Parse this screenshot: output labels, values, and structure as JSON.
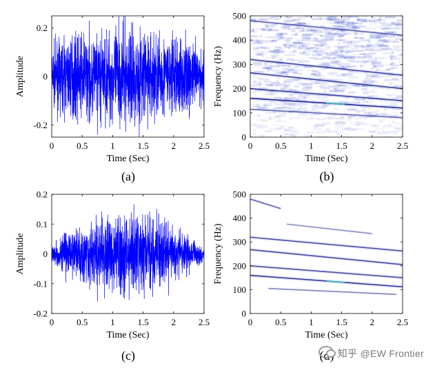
{
  "chart_data": [
    {
      "type": "line",
      "panel": "a",
      "caption": "(a)",
      "xlabel": "Time (Sec)",
      "ylabel": "Amplitude",
      "xlim": [
        0,
        2.5
      ],
      "ylim": [
        -0.25,
        0.25
      ],
      "xticks": [
        "0",
        "0.5",
        "1",
        "1.5",
        "2",
        "2.5"
      ],
      "yticks": [
        "-0.2",
        "0",
        "0.2"
      ],
      "series": [
        {
          "color": "#0000ff",
          "envelope": {
            "t": [
              0,
              0.25,
              0.5,
              0.75,
              1.0,
              1.25,
              1.5,
              1.75,
              2.0,
              2.25,
              2.5
            ],
            "amp": [
              0.1,
              0.14,
              0.15,
              0.15,
              0.17,
              0.18,
              0.17,
              0.16,
              0.15,
              0.13,
              0.1
            ],
            "peak": 0.25,
            "trough": -0.24
          }
        }
      ]
    },
    {
      "type": "heatmap",
      "panel": "b",
      "caption": "(b)",
      "xlabel": "Time (Sec)",
      "ylabel": "Frequency (Hz)",
      "xlim": [
        0,
        2.5
      ],
      "ylim": [
        0,
        500
      ],
      "xticks": [
        "0",
        "0.5",
        "1",
        "1.5",
        "2",
        "2.5"
      ],
      "yticks": [
        "0",
        "100",
        "200",
        "300",
        "400",
        "500"
      ],
      "noise_background": true,
      "ridges": [
        {
          "t": [
            0,
            2.5
          ],
          "f": [
            480,
            420
          ],
          "strength": 0.55
        },
        {
          "t": [
            0,
            2.5
          ],
          "f": [
            320,
            255
          ],
          "strength": 0.75
        },
        {
          "t": [
            0,
            2.5
          ],
          "f": [
            265,
            200
          ],
          "strength": 0.8
        },
        {
          "t": [
            0,
            2.5
          ],
          "f": [
            200,
            150
          ],
          "strength": 0.8
        },
        {
          "t": [
            0,
            2.5
          ],
          "f": [
            160,
            120
          ],
          "strength": 1.0
        },
        {
          "t": [
            0,
            2.5
          ],
          "f": [
            115,
            80
          ],
          "strength": 0.5
        }
      ]
    },
    {
      "type": "line",
      "panel": "c",
      "caption": "(c)",
      "xlabel": "Time (Sec)",
      "ylabel": "Amplitude",
      "xlim": [
        0,
        2.5
      ],
      "ylim": [
        -0.2,
        0.2
      ],
      "xticks": [
        "0",
        "0.5",
        "1",
        "1.5",
        "2",
        "2.5"
      ],
      "yticks": [
        "-0.2",
        "-0.1",
        "0",
        "0.1",
        "0.2"
      ],
      "series": [
        {
          "color": "#0000ff",
          "envelope": {
            "t": [
              0,
              0.25,
              0.5,
              0.75,
              1.0,
              1.25,
              1.5,
              1.75,
              2.0,
              2.25,
              2.5
            ],
            "amp": [
              0.02,
              0.07,
              0.09,
              0.1,
              0.11,
              0.12,
              0.12,
              0.1,
              0.08,
              0.05,
              0.02
            ],
            "peak": 0.13,
            "trough": -0.16
          }
        }
      ]
    },
    {
      "type": "heatmap",
      "panel": "d",
      "caption": "(d)",
      "xlabel": "Time (Sec)",
      "ylabel": "Frequency (Hz)",
      "xlim": [
        0,
        2.5
      ],
      "ylim": [
        0,
        500
      ],
      "xticks": [
        "0",
        "0.5",
        "1",
        "1.5",
        "2",
        "2.5"
      ],
      "yticks": [
        "0",
        "100",
        "200",
        "300",
        "400",
        "500"
      ],
      "noise_background": false,
      "ridges": [
        {
          "t": [
            0,
            0.5
          ],
          "f": [
            480,
            440
          ],
          "strength": 0.55
        },
        {
          "t": [
            0.6,
            2.0
          ],
          "f": [
            375,
            335
          ],
          "strength": 0.25
        },
        {
          "t": [
            0,
            2.5
          ],
          "f": [
            320,
            262
          ],
          "strength": 0.7
        },
        {
          "t": [
            0,
            2.5
          ],
          "f": [
            268,
            205
          ],
          "strength": 0.75
        },
        {
          "t": [
            0,
            2.5
          ],
          "f": [
            200,
            150
          ],
          "strength": 0.7
        },
        {
          "t": [
            0,
            2.5
          ],
          "f": [
            160,
            112
          ],
          "strength": 0.9
        },
        {
          "t": [
            0.3,
            2.4
          ],
          "f": [
            105,
            80
          ],
          "strength": 0.3
        }
      ]
    }
  ],
  "watermark": "知乎 @EW Frontier"
}
